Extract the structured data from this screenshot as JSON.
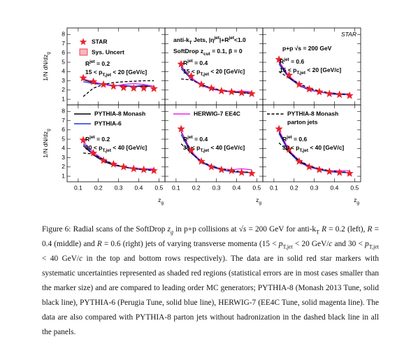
{
  "legend": {
    "items": [
      {
        "name": "STAR",
        "color": "#e8222b",
        "marker": "star"
      },
      {
        "name": "PYTHIA-8 Monash",
        "color": "#000000"
      },
      {
        "name": "PYTHIA-6",
        "color": "#2233dd"
      },
      {
        "name": "HERWIG-7 EE4C",
        "color": "#ee22ee"
      },
      {
        "name": [
          "PYTHIA-8 Monash",
          "parton jets"
        ],
        "color": "#000000",
        "dash": true
      }
    ],
    "sys": {
      "name": "Sys. Uncert",
      "color": "#e8222b",
      "fill": "#f6b8bd"
    }
  },
  "chart_data": [
    {
      "type": "line",
      "x": [
        0.125,
        0.175,
        0.225,
        0.275,
        0.325,
        0.375,
        0.425,
        0.475
      ],
      "xlim": [
        0.045,
        0.53
      ],
      "ylim": [
        0.4,
        8.7
      ],
      "xticks": [
        0.1,
        0.2,
        0.3,
        0.4,
        0.5
      ],
      "yticks": [
        1,
        2,
        3,
        4,
        5,
        6,
        7,
        8
      ],
      "ylabel": [
        {
          "t": "1/N dN/dz"
        },
        {
          "t": "g",
          "sub": true
        }
      ],
      "annotations": [
        [
          {
            "t": "R"
          },
          {
            "t": "jet",
            "sup": true
          },
          {
            "t": " = 0.2"
          }
        ],
        [
          {
            "t": "15 < p"
          },
          {
            "t": "T,jet",
            "sub": true
          },
          {
            "t": " < 20 [GeV/c]"
          }
        ]
      ],
      "series": [
        [
          3.3,
          2.9,
          2.6,
          2.4,
          2.25,
          2.2,
          2.2,
          2.15
        ],
        [
          3.1,
          2.8,
          2.6,
          2.5,
          2.45,
          2.4,
          2.4,
          2.4
        ],
        [
          2.9,
          2.7,
          2.6,
          2.5,
          2.5,
          2.4,
          2.5,
          2.4
        ],
        [
          3.2,
          2.9,
          2.6,
          2.4,
          2.6,
          2.7,
          2.6,
          2.4
        ],
        [
          1.3,
          2.2,
          2.6,
          2.8,
          2.9,
          2.95,
          3.0,
          3.0
        ]
      ]
    },
    {
      "type": "line",
      "x": [
        0.125,
        0.175,
        0.225,
        0.275,
        0.325,
        0.375,
        0.425,
        0.475
      ],
      "xlim": [
        0.045,
        0.53
      ],
      "ylim": [
        0.4,
        8.7
      ],
      "xticks": [
        0.1,
        0.2,
        0.3,
        0.4,
        0.5
      ],
      "yticks": [
        1,
        2,
        3,
        4,
        5,
        6,
        7,
        8
      ],
      "annotations": [
        [
          {
            "t": "anti-k"
          },
          {
            "t": "T",
            "sub": true
          },
          {
            "t": " Jets, |η"
          },
          {
            "t": "jet",
            "sup": true
          },
          {
            "t": "|+R"
          },
          {
            "t": "jet",
            "sup": true
          },
          {
            "t": "<1.0"
          }
        ],
        [
          {
            "t": "SoftDrop z"
          },
          {
            "t": "cut",
            "sub": true
          },
          {
            "t": " = 0.1, β = 0"
          }
        ],
        [
          {
            "t": "R"
          },
          {
            "t": "jet",
            "sup": true
          },
          {
            "t": " = 0.4"
          }
        ],
        [
          {
            "t": "15 < p"
          },
          {
            "t": "T,jet",
            "sub": true
          },
          {
            "t": " < 20 [GeV/c]"
          }
        ]
      ],
      "series": [
        [
          4.8,
          3.5,
          2.6,
          2.2,
          1.9,
          1.8,
          1.7,
          1.6
        ],
        [
          4.5,
          3.3,
          2.6,
          2.2,
          1.9,
          1.8,
          1.7,
          1.7
        ],
        [
          4.3,
          3.2,
          2.5,
          2.1,
          1.9,
          1.8,
          1.8,
          1.7
        ],
        [
          4.6,
          3.3,
          2.6,
          2.1,
          1.9,
          1.8,
          1.9,
          1.8
        ],
        [
          3.2,
          3.1,
          2.6,
          2.2,
          2.0,
          1.8,
          1.7,
          1.6
        ]
      ]
    },
    {
      "type": "line",
      "x": [
        0.125,
        0.175,
        0.225,
        0.275,
        0.325,
        0.375,
        0.425,
        0.475
      ],
      "xlim": [
        0.045,
        0.53
      ],
      "ylim": [
        0.4,
        8.7
      ],
      "xticks": [
        0.1,
        0.2,
        0.3,
        0.4,
        0.5
      ],
      "yticks": [
        1,
        2,
        3,
        4,
        5,
        6,
        7,
        8
      ],
      "annotations": [
        [
          {
            "t": "STAR"
          }
        ],
        [
          {
            "t": "p+p  √s = 200 GeV"
          }
        ],
        [
          {
            "t": "R"
          },
          {
            "t": "jet",
            "sup": true
          },
          {
            "t": " = 0.6"
          }
        ],
        [
          {
            "t": "15 < p"
          },
          {
            "t": "T,jet",
            "sub": true
          },
          {
            "t": " < 20 [GeV/c]"
          }
        ]
      ],
      "annotation_color": "#e8222b",
      "series": [
        [
          5.3,
          3.6,
          2.6,
          2.1,
          1.8,
          1.6,
          1.5,
          1.4
        ],
        [
          5.0,
          3.4,
          2.5,
          2.0,
          1.8,
          1.6,
          1.5,
          1.5
        ],
        [
          4.8,
          3.3,
          2.5,
          2.0,
          1.8,
          1.6,
          1.5,
          1.5
        ],
        [
          5.1,
          3.5,
          2.6,
          2.1,
          1.8,
          1.7,
          1.6,
          1.6
        ],
        [
          4.0,
          3.3,
          2.7,
          2.2,
          1.9,
          1.7,
          1.6,
          1.5
        ]
      ]
    },
    {
      "type": "line",
      "x": [
        0.125,
        0.175,
        0.225,
        0.275,
        0.325,
        0.375,
        0.425,
        0.475
      ],
      "xlim": [
        0.045,
        0.53
      ],
      "ylim": [
        0.4,
        8.7
      ],
      "xticks": [
        0.1,
        0.2,
        0.3,
        0.4,
        0.5
      ],
      "yticks": [
        1,
        2,
        3,
        4,
        5,
        6,
        7,
        8
      ],
      "ylabel": [
        {
          "t": "1/N dN/dz"
        },
        {
          "t": "g",
          "sub": true
        }
      ],
      "xlabel": [
        {
          "t": "z"
        },
        {
          "t": "g",
          "sub": true
        }
      ],
      "annotations": [
        [
          {
            "t": "R"
          },
          {
            "t": "jet",
            "sup": true
          },
          {
            "t": " = 0.2"
          }
        ],
        [
          {
            "t": "30 < p"
          },
          {
            "t": "T,jet",
            "sub": true
          },
          {
            "t": " < 40 [GeV/c]"
          }
        ]
      ],
      "series": [
        [
          4.9,
          3.5,
          2.7,
          2.3,
          2.0,
          1.8,
          1.7,
          1.6
        ],
        [
          4.3,
          3.3,
          2.6,
          2.2,
          2.0,
          1.8,
          1.7,
          1.7
        ],
        [
          4.5,
          3.4,
          2.7,
          2.3,
          2.0,
          1.8,
          1.7,
          1.7
        ],
        [
          4.7,
          3.6,
          2.8,
          2.3,
          2.0,
          1.9,
          1.8,
          1.8
        ],
        [
          3.5,
          3.4,
          2.8,
          2.3,
          2.0,
          1.8,
          1.7,
          1.6
        ]
      ]
    },
    {
      "type": "line",
      "x": [
        0.125,
        0.175,
        0.225,
        0.275,
        0.325,
        0.375,
        0.425,
        0.475
      ],
      "xlim": [
        0.045,
        0.53
      ],
      "ylim": [
        0.4,
        8.7
      ],
      "xticks": [
        0.1,
        0.2,
        0.3,
        0.4,
        0.5
      ],
      "yticks": [
        1,
        2,
        3,
        4,
        5,
        6,
        7,
        8
      ],
      "xlabel": [
        {
          "t": "z"
        },
        {
          "t": "g",
          "sub": true
        }
      ],
      "annotations": [
        [
          {
            "t": "R"
          },
          {
            "t": "jet",
            "sup": true
          },
          {
            "t": " = 0.4"
          }
        ],
        [
          {
            "t": "30 < p"
          },
          {
            "t": "T,jet",
            "sub": true
          },
          {
            "t": " < 40 [GeV/c]"
          }
        ]
      ],
      "series": [
        [
          6.1,
          3.8,
          2.6,
          2.0,
          1.7,
          1.6,
          1.4,
          1.3
        ],
        [
          5.8,
          3.6,
          2.5,
          2.0,
          1.7,
          1.5,
          1.4,
          1.4
        ],
        [
          5.5,
          3.5,
          2.5,
          2.0,
          1.7,
          1.5,
          1.4,
          1.4
        ],
        [
          5.9,
          3.7,
          2.6,
          2.1,
          1.8,
          1.7,
          1.8,
          1.7
        ],
        [
          4.5,
          3.5,
          2.6,
          2.1,
          1.8,
          1.6,
          1.5,
          1.4
        ]
      ]
    },
    {
      "type": "line",
      "x": [
        0.125,
        0.175,
        0.225,
        0.275,
        0.325,
        0.375,
        0.425,
        0.475
      ],
      "xlim": [
        0.045,
        0.53
      ],
      "ylim": [
        0.4,
        8.7
      ],
      "xticks": [
        0.1,
        0.2,
        0.3,
        0.4,
        0.5
      ],
      "yticks": [
        1,
        2,
        3,
        4,
        5,
        6,
        7,
        8
      ],
      "xlabel": [
        {
          "t": "z"
        },
        {
          "t": "g",
          "sub": true
        }
      ],
      "annotations": [
        [
          {
            "t": "R"
          },
          {
            "t": "jet",
            "sup": true
          },
          {
            "t": " = 0.6"
          }
        ],
        [
          {
            "t": "30 < p"
          },
          {
            "t": "T,jet",
            "sub": true
          },
          {
            "t": " < 40 [GeV/c]"
          }
        ]
      ],
      "series": [
        [
          6.1,
          3.9,
          2.6,
          2.0,
          1.7,
          1.5,
          1.4,
          1.3
        ],
        [
          5.8,
          3.7,
          2.6,
          2.0,
          1.7,
          1.5,
          1.4,
          1.4
        ],
        [
          5.6,
          3.6,
          2.5,
          2.0,
          1.7,
          1.5,
          1.4,
          1.4
        ],
        [
          6.0,
          3.8,
          2.7,
          2.1,
          1.8,
          1.6,
          1.6,
          1.6
        ],
        [
          4.6,
          3.6,
          2.7,
          2.1,
          1.8,
          1.6,
          1.5,
          1.4
        ]
      ]
    }
  ],
  "caption": [
    {
      "t": "Figure 6: Radial scans of the SoftDrop "
    },
    {
      "t": "z",
      "i": true
    },
    {
      "t": "g",
      "sub": true,
      "i": true
    },
    {
      "t": " in p+p collisions at √"
    },
    {
      "t": "s",
      "i": true
    },
    {
      "t": " = 200 GeV for anti-k"
    },
    {
      "t": "T",
      "sub": true
    },
    {
      "t": " "
    },
    {
      "t": "R",
      "i": true
    },
    {
      "t": " = 0.2 (left), "
    },
    {
      "t": "R",
      "i": true
    },
    {
      "t": " = 0.4 (middle) and "
    },
    {
      "t": "R",
      "i": true
    },
    {
      "t": " = 0.6 (right) jets of varying transverse momenta (15 < "
    },
    {
      "t": "p",
      "i": true
    },
    {
      "t": "T,jet",
      "sub": true
    },
    {
      "t": " < 20 GeV/"
    },
    {
      "t": "c",
      "i": true
    },
    {
      "t": " and 30 < "
    },
    {
      "t": "p",
      "i": true
    },
    {
      "t": "T,jet",
      "sub": true
    },
    {
      "t": " < 40 GeV/"
    },
    {
      "t": "c",
      "i": true
    },
    {
      "t": " in the top and bottom rows respectively). The data are in solid red star markers with systematic uncertainties represented as shaded red regions (statistical errors are in most cases smaller than the marker size) and are compared to leading order MC generators; PYTHIA-8 (Monash 2013 Tune, solid black line), PYTHIA-6 (Perugia Tune, solid blue line), HERWIG-7 (EE4C Tune, solid magenta line). The data are also compared with PYTHIA-8 parton jets without hadronization in the dashed black line in all the panels."
    }
  ]
}
